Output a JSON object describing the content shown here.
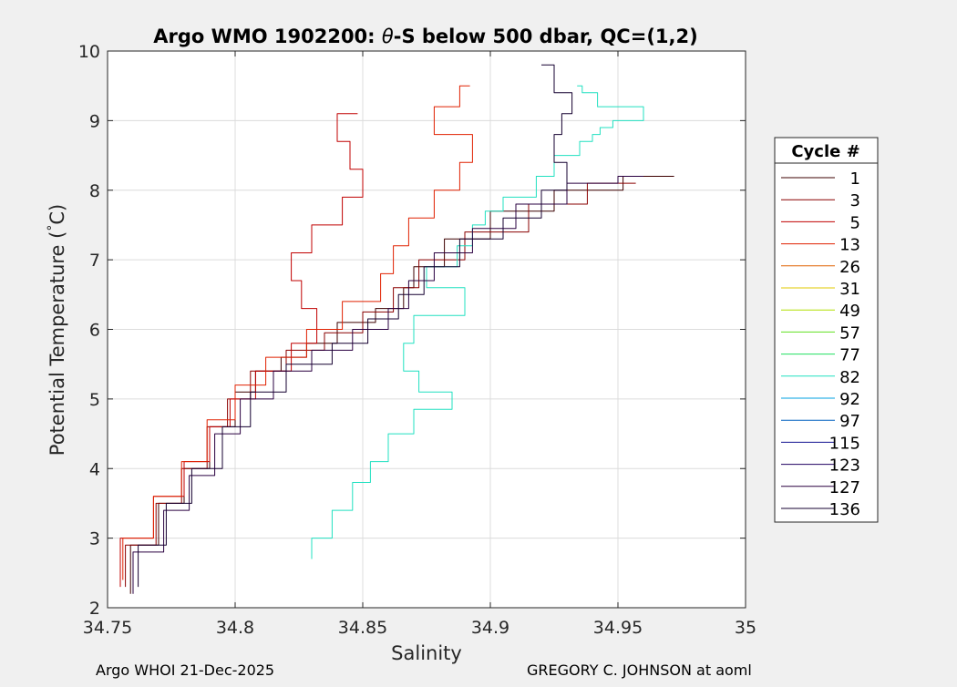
{
  "figure": {
    "background": "#f0f0f0",
    "footer_left": "Argo WHOI 21-Dec-2025",
    "footer_right": "GREGORY C. JOHNSON at aoml"
  },
  "chart_data": {
    "type": "line",
    "title_prefix": "Argo WMO 1902200: ",
    "title_theta": "θ",
    "title_suffix": "-S below 500 dbar,  QC=(1,2)",
    "xlabel": "Salinity",
    "ylabel_main": "Potential Temperature (",
    "ylabel_degree": "°",
    "ylabel_unit": "C)",
    "xlim": [
      34.75,
      35
    ],
    "ylim": [
      2,
      10
    ],
    "xticks": [
      34.75,
      34.8,
      34.85,
      34.9,
      34.95,
      35
    ],
    "xtick_labels": [
      "34.75",
      "34.8",
      "34.85",
      "34.9",
      "34.95",
      "35"
    ],
    "yticks": [
      2,
      3,
      4,
      5,
      6,
      7,
      8,
      9,
      10
    ],
    "ytick_labels": [
      "2",
      "3",
      "4",
      "5",
      "6",
      "7",
      "8",
      "9",
      "10"
    ],
    "grid": true,
    "legend_title": "Cycle #",
    "legend_position": "outside-right",
    "series": [
      {
        "name": "1",
        "color": "#3c0000",
        "x": [
          34.759,
          34.77,
          34.78,
          34.79,
          34.8,
          34.808,
          34.818,
          34.828,
          34.84,
          34.855,
          34.866,
          34.87,
          34.882,
          34.9,
          34.925,
          34.952,
          34.972
        ],
        "y": [
          2.2,
          2.9,
          3.5,
          4.0,
          4.6,
          5.1,
          5.4,
          5.6,
          5.8,
          6.1,
          6.3,
          6.6,
          6.9,
          7.3,
          7.7,
          8.0,
          8.2
        ]
      },
      {
        "name": "3",
        "color": "#8a0000",
        "x": [
          34.757,
          34.769,
          34.779,
          34.789,
          34.797,
          34.806,
          34.82,
          34.835,
          34.85,
          34.862,
          34.872,
          34.89,
          34.915,
          34.938,
          34.957
        ],
        "y": [
          2.3,
          2.9,
          3.5,
          4.0,
          4.6,
          5.0,
          5.4,
          5.7,
          5.95,
          6.25,
          6.6,
          7.0,
          7.4,
          7.8,
          8.1
        ]
      },
      {
        "name": "5",
        "color": "#c00000",
        "x": [
          34.755,
          34.768,
          34.78,
          34.79,
          34.798,
          34.808,
          34.822,
          34.832,
          34.826,
          34.822,
          34.83,
          34.842,
          34.85,
          34.845,
          34.84,
          34.848
        ],
        "y": [
          2.3,
          3.0,
          3.6,
          4.1,
          4.6,
          5.0,
          5.4,
          5.8,
          6.3,
          6.7,
          7.1,
          7.5,
          7.9,
          8.3,
          8.7,
          9.1
        ]
      },
      {
        "name": "13",
        "color": "#e02000",
        "x": [
          34.756,
          34.768,
          34.779,
          34.789,
          34.8,
          34.812,
          34.828,
          34.842,
          34.857,
          34.862,
          34.868,
          34.878,
          34.888,
          34.893,
          34.878,
          34.888,
          34.892
        ],
        "y": [
          2.4,
          3.0,
          3.6,
          4.1,
          4.7,
          5.2,
          5.6,
          6.0,
          6.4,
          6.8,
          7.2,
          7.6,
          8.0,
          8.4,
          8.8,
          9.2,
          9.5
        ]
      },
      {
        "name": "26",
        "color": "#e06000",
        "x": [],
        "y": []
      },
      {
        "name": "31",
        "color": "#e0c800",
        "x": [],
        "y": []
      },
      {
        "name": "49",
        "color": "#b0e000",
        "x": [],
        "y": []
      },
      {
        "name": "57",
        "color": "#60e020",
        "x": [],
        "y": []
      },
      {
        "name": "77",
        "color": "#20e060",
        "x": [],
        "y": []
      },
      {
        "name": "82",
        "color": "#20e0c0",
        "x": [
          34.83,
          34.838,
          34.846,
          34.853,
          34.86,
          34.87,
          34.885,
          34.872,
          34.866,
          34.87,
          34.89,
          34.875,
          34.887,
          34.893,
          34.898,
          34.905,
          34.918,
          34.925,
          34.935,
          34.94,
          34.943,
          34.948,
          34.96,
          34.942,
          34.936,
          34.934
        ],
        "y": [
          2.7,
          3.0,
          3.4,
          3.8,
          4.1,
          4.5,
          4.85,
          5.1,
          5.4,
          5.8,
          6.2,
          6.6,
          6.9,
          7.2,
          7.5,
          7.7,
          7.9,
          8.2,
          8.5,
          8.7,
          8.8,
          8.9,
          9.0,
          9.2,
          9.4,
          9.5
        ]
      },
      {
        "name": "92",
        "color": "#00a0e0",
        "x": [],
        "y": []
      },
      {
        "name": "97",
        "color": "#0060c0",
        "x": [],
        "y": []
      },
      {
        "name": "115",
        "color": "#101090",
        "x": [],
        "y": []
      },
      {
        "name": "123",
        "color": "#200060",
        "x": [],
        "y": []
      },
      {
        "name": "127",
        "color": "#2a0040",
        "x": [
          34.76,
          34.772,
          34.782,
          34.792,
          34.802,
          34.815,
          34.83,
          34.846,
          34.86,
          34.868,
          34.878,
          34.893,
          34.91,
          34.93,
          34.95,
          34.96
        ],
        "y": [
          2.2,
          2.8,
          3.4,
          3.9,
          4.5,
          5.0,
          5.4,
          5.7,
          6.0,
          6.3,
          6.7,
          7.1,
          7.45,
          7.8,
          8.1,
          8.2
        ]
      },
      {
        "name": "136",
        "color": "#150030",
        "x": [
          34.762,
          34.773,
          34.783,
          34.795,
          34.806,
          34.82,
          34.838,
          34.852,
          34.864,
          34.874,
          34.888,
          34.905,
          34.92,
          34.93,
          34.925,
          34.928,
          34.932,
          34.925,
          34.92
        ],
        "y": [
          2.3,
          2.9,
          3.5,
          4.0,
          4.6,
          5.1,
          5.5,
          5.8,
          6.15,
          6.5,
          6.9,
          7.3,
          7.6,
          8.0,
          8.4,
          8.8,
          9.1,
          9.4,
          9.8
        ]
      }
    ]
  }
}
